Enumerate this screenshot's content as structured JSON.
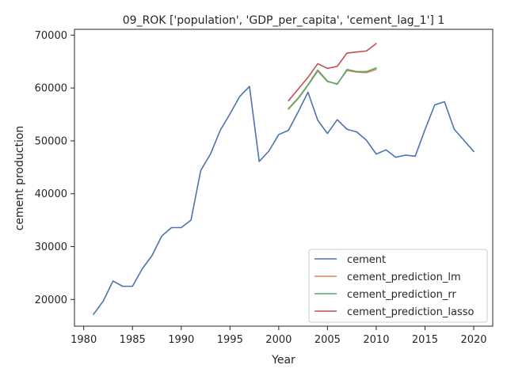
{
  "chart_data": {
    "type": "line",
    "title": "09_ROK ['population', 'GDP_per_capita', 'cement_lag_1'] 1",
    "xlabel": "Year",
    "ylabel": "cement production",
    "xlim": [
      1979.05,
      2021.95
    ],
    "ylim": [
      14960,
      71100
    ],
    "xticks": [
      1980,
      1985,
      1990,
      1995,
      2000,
      2005,
      2010,
      2015,
      2020
    ],
    "yticks": [
      20000,
      30000,
      40000,
      50000,
      60000,
      70000
    ],
    "xtick_labels": [
      "1980",
      "1985",
      "1990",
      "1995",
      "2000",
      "2005",
      "2010",
      "2015",
      "2020"
    ],
    "ytick_labels": [
      "20000",
      "30000",
      "40000",
      "50000",
      "60000",
      "70000"
    ],
    "grid": false,
    "legend_position": "lower-right",
    "series": [
      {
        "name": "cement",
        "color": "#4c72b0",
        "x": [
          1981,
          1982,
          1983,
          1984,
          1985,
          1986,
          1987,
          1988,
          1989,
          1990,
          1991,
          1992,
          1993,
          1994,
          1995,
          1996,
          1997,
          1998,
          1999,
          2000,
          2001,
          2002,
          2003,
          2004,
          2005,
          2006,
          2007,
          2008,
          2009,
          2010,
          2011,
          2012,
          2013,
          2014,
          2015,
          2016,
          2017,
          2018,
          2019,
          2020
        ],
        "y": [
          17200,
          19700,
          23500,
          22500,
          22500,
          25800,
          28300,
          32000,
          33600,
          33600,
          35000,
          44400,
          47500,
          52000,
          55100,
          58400,
          60300,
          46100,
          48100,
          51200,
          52000,
          55500,
          59200,
          53900,
          51400,
          54000,
          52200,
          51700,
          50100,
          47500,
          48300,
          46900,
          47300,
          47100,
          52100,
          56800,
          57400,
          52200,
          50100,
          48000
        ]
      },
      {
        "name": "cement_prediction_lm",
        "color": "#dd8452",
        "x": [
          2001,
          2002,
          2003,
          2004,
          2005,
          2006,
          2007,
          2008,
          2009,
          2010
        ],
        "y": [
          56000,
          58000,
          60500,
          63200,
          61200,
          60800,
          63300,
          63000,
          62900,
          63500
        ]
      },
      {
        "name": "cement_prediction_rr",
        "color": "#55a868",
        "x": [
          2001,
          2002,
          2003,
          2004,
          2005,
          2006,
          2007,
          2008,
          2009,
          2010
        ],
        "y": [
          56100,
          58100,
          60600,
          63400,
          61300,
          60700,
          63500,
          63100,
          63100,
          63800
        ]
      },
      {
        "name": "cement_prediction_lasso",
        "color": "#c44e52",
        "x": [
          2001,
          2002,
          2003,
          2004,
          2005,
          2006,
          2007,
          2008,
          2009,
          2010
        ],
        "y": [
          57600,
          59800,
          62000,
          64600,
          63700,
          64100,
          66600,
          66800,
          67000,
          68400
        ]
      }
    ]
  }
}
